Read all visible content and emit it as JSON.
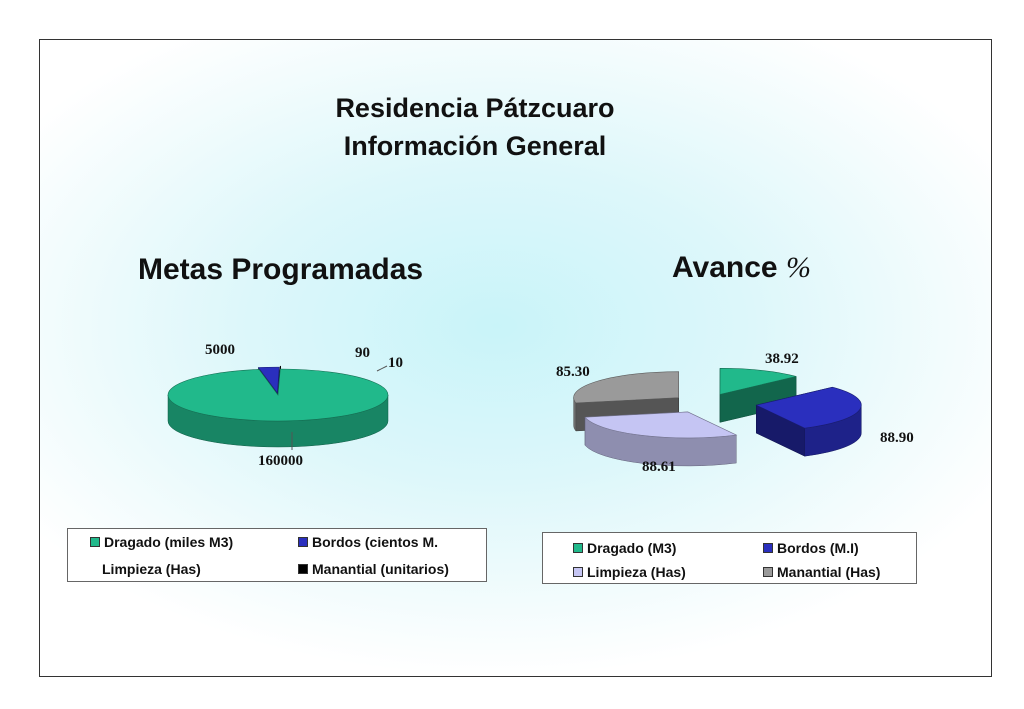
{
  "header": {
    "title_line1": "Residencia Pátzcuaro",
    "title_line2": "Información General"
  },
  "charts_meta": {
    "left_title": "Metas Programadas",
    "right_title_text": "Avance ",
    "right_title_symbol": "%"
  },
  "chart_data": [
    {
      "type": "pie",
      "title": "Metas Programadas",
      "categories": [
        "Dragado (miles M3)",
        "Bordos (cientos M.",
        "Limpieza (Has)",
        "Manantial (unitarios)"
      ],
      "values": [
        160000,
        5000,
        90,
        10
      ],
      "labels": [
        "160000",
        "5000",
        "90",
        "10"
      ],
      "colors": [
        "#21b98b",
        "#2a2fbe",
        "#d9d9e8",
        "#000000"
      ],
      "legend": "bottom"
    },
    {
      "type": "pie",
      "title": "Avance %",
      "categories": [
        "Dragado (M3)",
        "Bordos (M.I)",
        "Limpieza (Has)",
        "Manantial (Has)"
      ],
      "values": [
        38.92,
        88.9,
        88.61,
        85.3
      ],
      "labels": [
        "38.92",
        "88.90",
        "88.61",
        "85.30"
      ],
      "colors": [
        "#21b98b",
        "#2a2fbe",
        "#c5c5f3",
        "#9a9a9a"
      ],
      "legend": "bottom"
    }
  ]
}
